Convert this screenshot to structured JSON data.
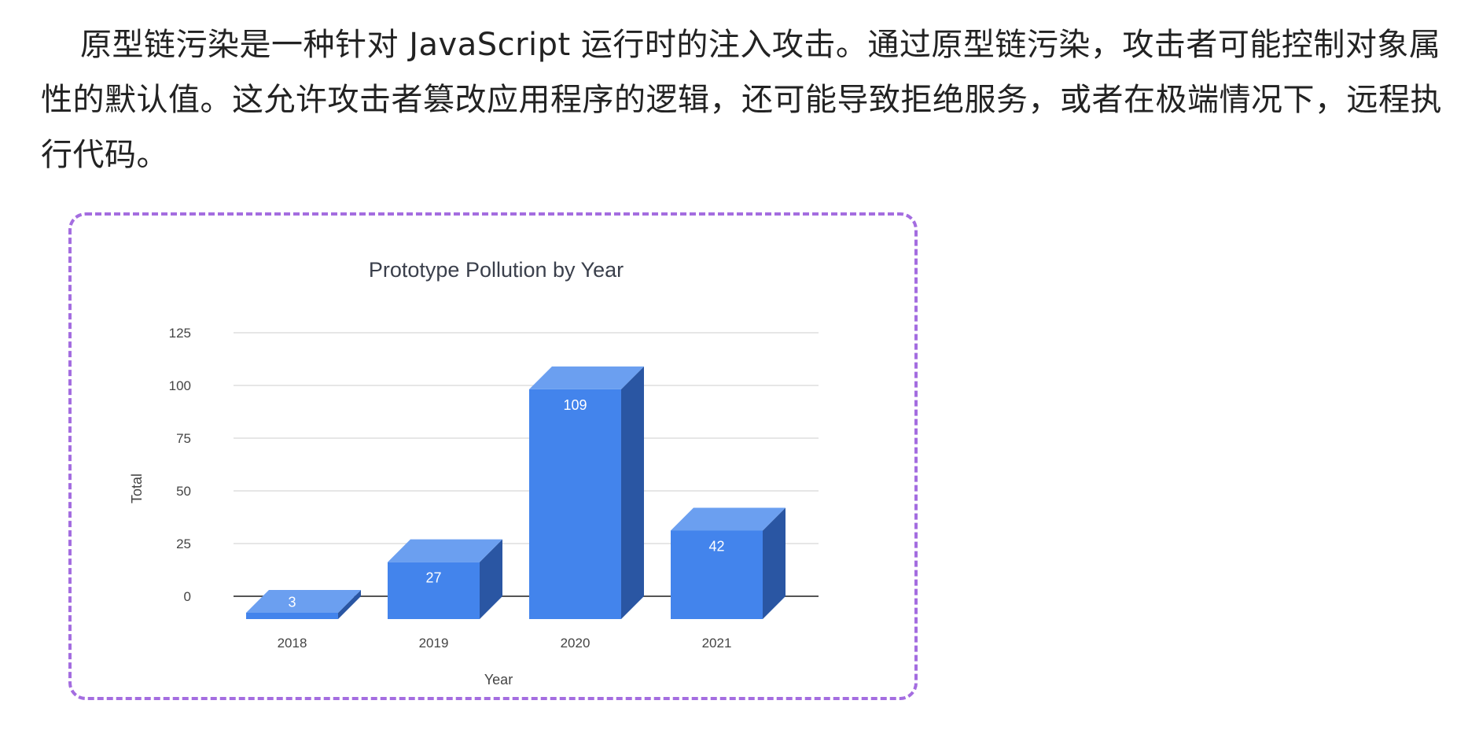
{
  "article": {
    "paragraph": "原型链污染是一种针对 JavaScript 运行时的注入攻击。通过原型链污染，攻击者可能控制对象属性的默认值。这允许攻击者篡改应用程序的逻辑，还可能导致拒绝服务，或者在极端情况下，远程执行代码。"
  },
  "colors": {
    "frame_border": "#a46de0",
    "bar_front": "#4384ec",
    "bar_top": "#6b9ff0",
    "bar_side": "#2a56a3",
    "gridline": "#dddddd",
    "baseline": "#555555"
  },
  "chart_data": {
    "type": "bar",
    "style": "3d-column",
    "title": "Prototype Pollution by Year",
    "xlabel": "Year",
    "ylabel": "Total",
    "categories": [
      "2018",
      "2019",
      "2020",
      "2021"
    ],
    "values": [
      3,
      27,
      109,
      42
    ],
    "data_labels": [
      "3",
      "27",
      "109",
      "42"
    ],
    "yticks": [
      "0",
      "25",
      "50",
      "75",
      "100",
      "125"
    ],
    "ylim": [
      0,
      125
    ],
    "grid": true,
    "legend": "none"
  }
}
